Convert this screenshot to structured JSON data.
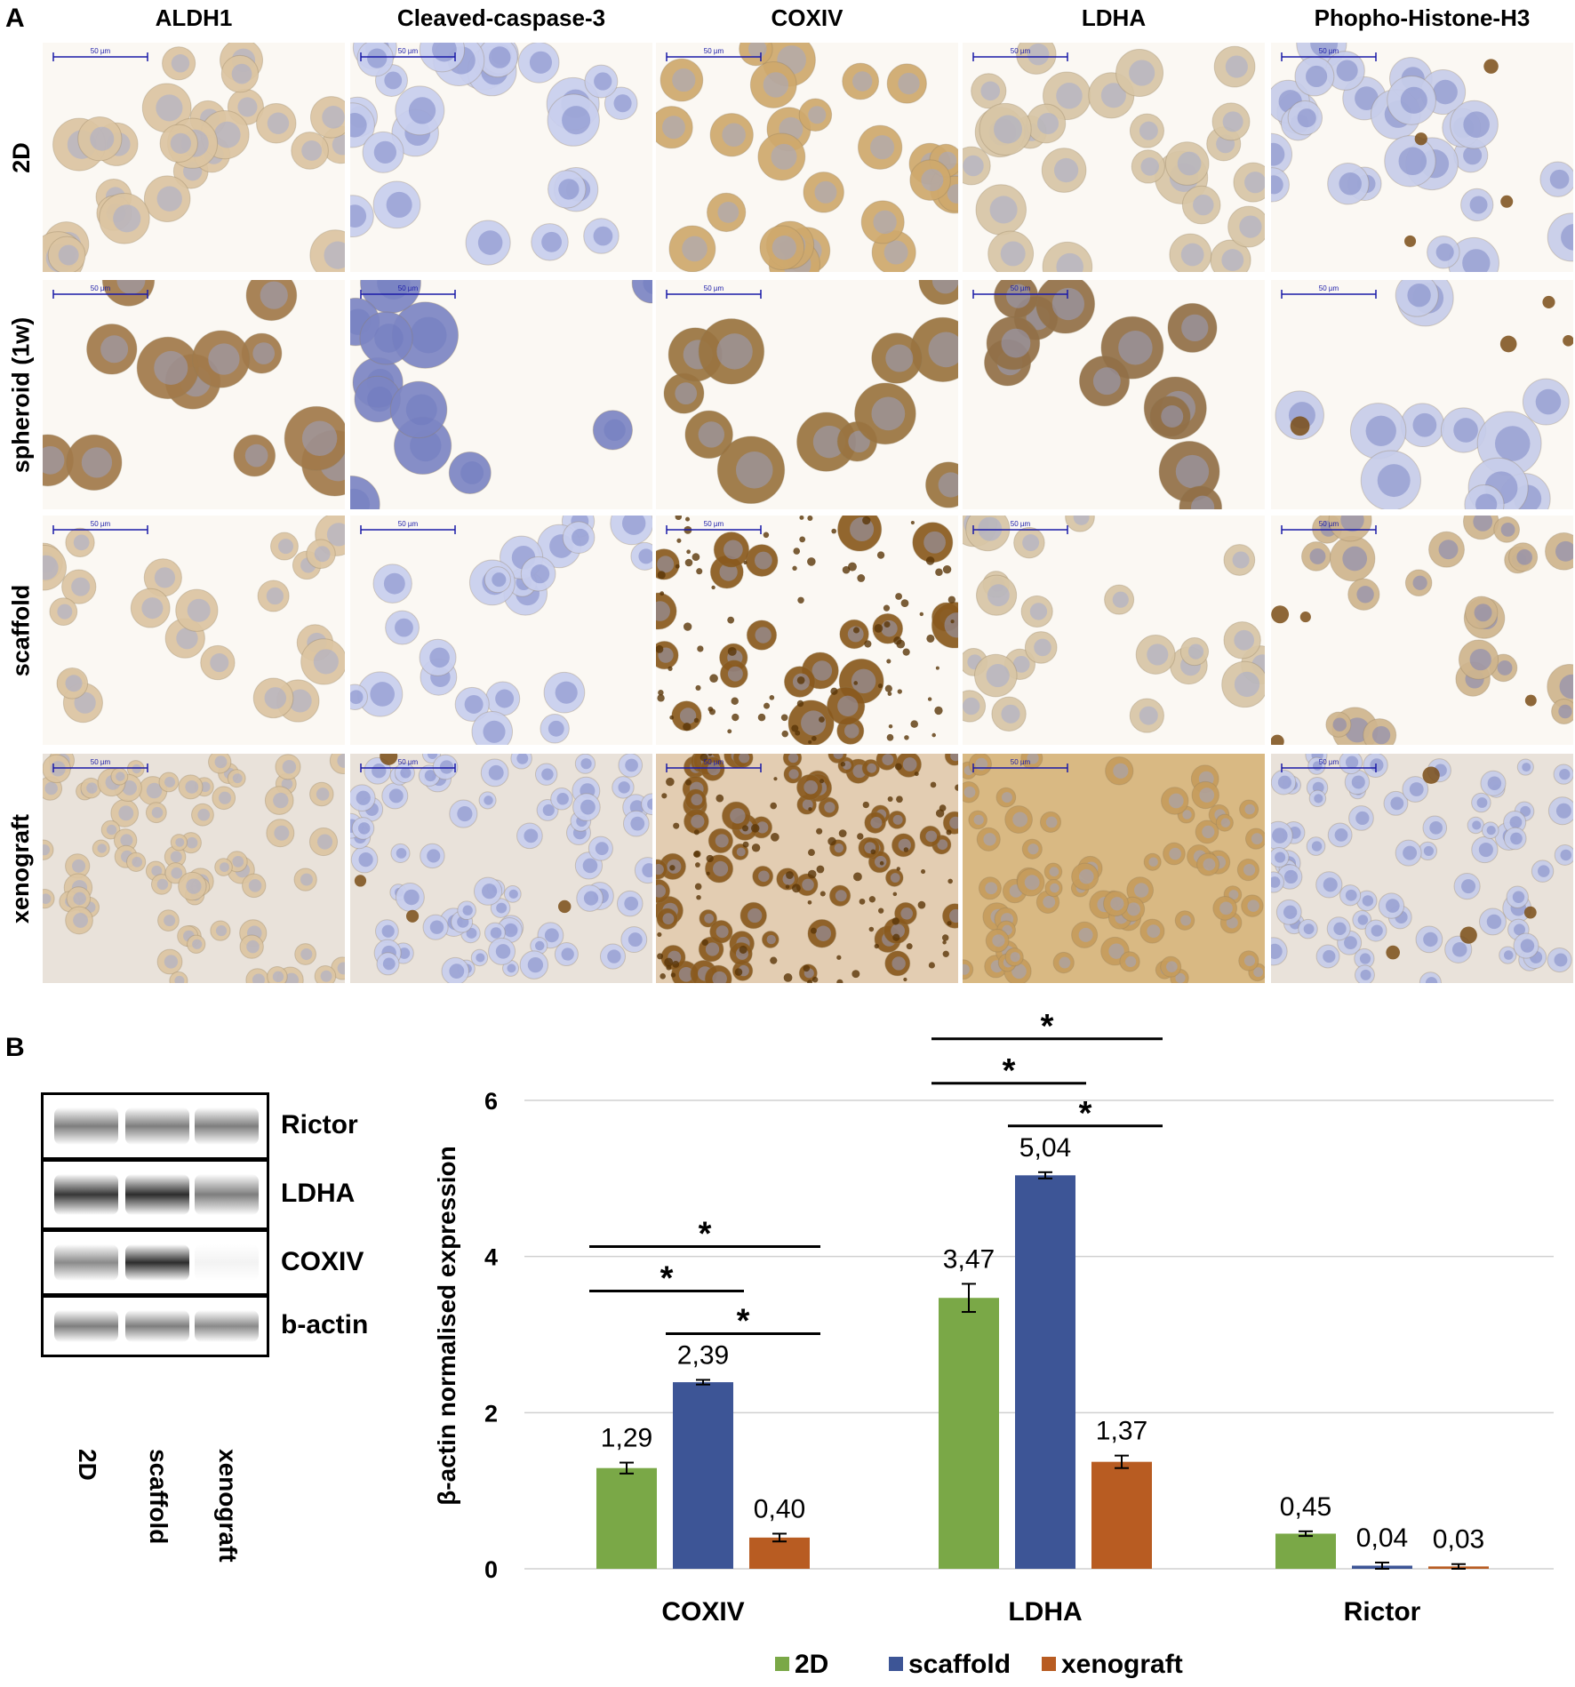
{
  "panel_a": {
    "letter": "A",
    "columns": [
      "ALDH1",
      "Cleaved-caspase-3",
      "COXIV",
      "LDHA",
      "Phopho-Histone-H3"
    ],
    "rows": [
      "2D",
      "spheroid (1w)",
      "scaffold",
      "xenograft"
    ],
    "scale_bar": "50 µm"
  },
  "panel_b": {
    "letter": "B",
    "blot": {
      "proteins": [
        "Rictor",
        "LDHA",
        "COXIV",
        "b-actin"
      ],
      "lanes": [
        "2D",
        "scaffold",
        "xenograft"
      ],
      "band_intensity": [
        [
          0.55,
          0.55,
          0.55
        ],
        [
          0.85,
          0.9,
          0.55
        ],
        [
          0.5,
          0.9,
          0.05
        ],
        [
          0.55,
          0.55,
          0.5
        ]
      ]
    }
  },
  "colors": {
    "2D": "#7aa847",
    "scaffold": "#3d5596",
    "xenograft": "#b85c22",
    "grid": "#d0d0d0"
  },
  "chart_data": {
    "type": "bar",
    "categories": [
      "COXIV",
      "LDHA",
      "Rictor"
    ],
    "ylabel": "β-actin normalised expression",
    "xlabel": "",
    "ylim": [
      0,
      6
    ],
    "yticks": [
      0,
      2,
      4,
      6
    ],
    "grid": true,
    "legend": "bottom",
    "series": [
      {
        "name": "2D",
        "values": [
          1.29,
          3.47,
          0.45
        ],
        "labels": [
          "1,29",
          "3,47",
          "0,45"
        ],
        "errors": [
          0.07,
          0.18,
          0.03
        ]
      },
      {
        "name": "scaffold",
        "values": [
          2.39,
          5.04,
          0.04
        ],
        "labels": [
          "2,39",
          "5,04",
          "0,04"
        ],
        "errors": [
          0.03,
          0.04,
          0.04
        ]
      },
      {
        "name": "xenograft",
        "values": [
          0.4,
          1.37,
          0.03
        ],
        "labels": [
          "0,40",
          "1,37",
          "0,03"
        ],
        "errors": [
          0.05,
          0.08,
          0.03
        ]
      }
    ],
    "significance": [
      {
        "category": 0,
        "from": 0,
        "to": 2,
        "label": "*"
      },
      {
        "category": 0,
        "from": 0,
        "to": 1,
        "label": "*"
      },
      {
        "category": 0,
        "from": 1,
        "to": 2,
        "label": "*"
      },
      {
        "category": 1,
        "from": 0,
        "to": 2,
        "label": "*"
      },
      {
        "category": 1,
        "from": 0,
        "to": 1,
        "label": "*"
      },
      {
        "category": 1,
        "from": 1,
        "to": 2,
        "label": "*"
      }
    ]
  }
}
